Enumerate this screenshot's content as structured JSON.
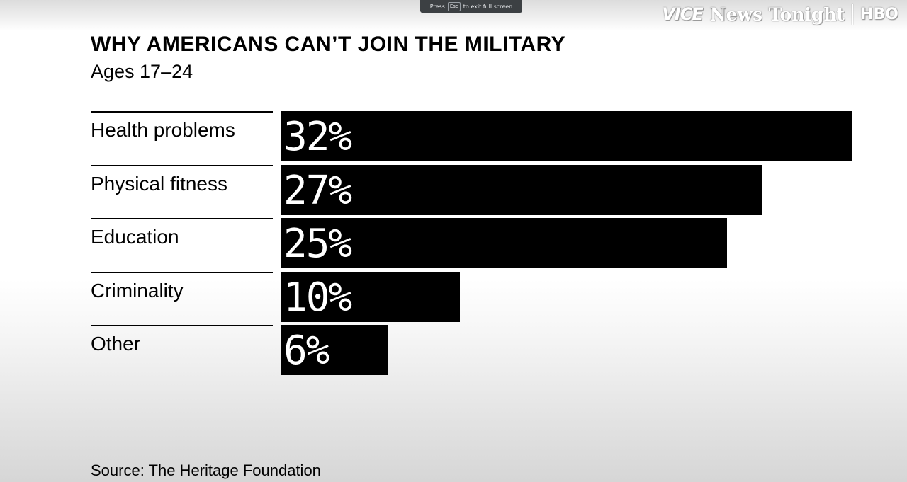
{
  "fullscreen_hint": {
    "before": "Press",
    "key": "Esc",
    "after": "to exit full screen"
  },
  "watermark": {
    "brand": "VICE",
    "show": "News Tonight",
    "network": "HBO"
  },
  "source": "Source: The Heritage Foundation",
  "chart_data": {
    "type": "bar",
    "orientation": "horizontal",
    "title": "WHY AMERICANS CAN’T JOIN THE MILITARY",
    "subtitle": "Ages 17–24",
    "categories": [
      "Health problems",
      "Physical fitness",
      "Education",
      "Criminality",
      "Other"
    ],
    "values": [
      32,
      27,
      25,
      10,
      6
    ],
    "value_labels": [
      "32%",
      "27%",
      "25%",
      "10%",
      "6%"
    ],
    "unit": "%",
    "xlim": [
      0,
      32
    ],
    "grid": false,
    "legend": "none",
    "colors": {
      "bar": "#000000",
      "value_text": "#ffffff",
      "label_text": "#000000"
    }
  }
}
